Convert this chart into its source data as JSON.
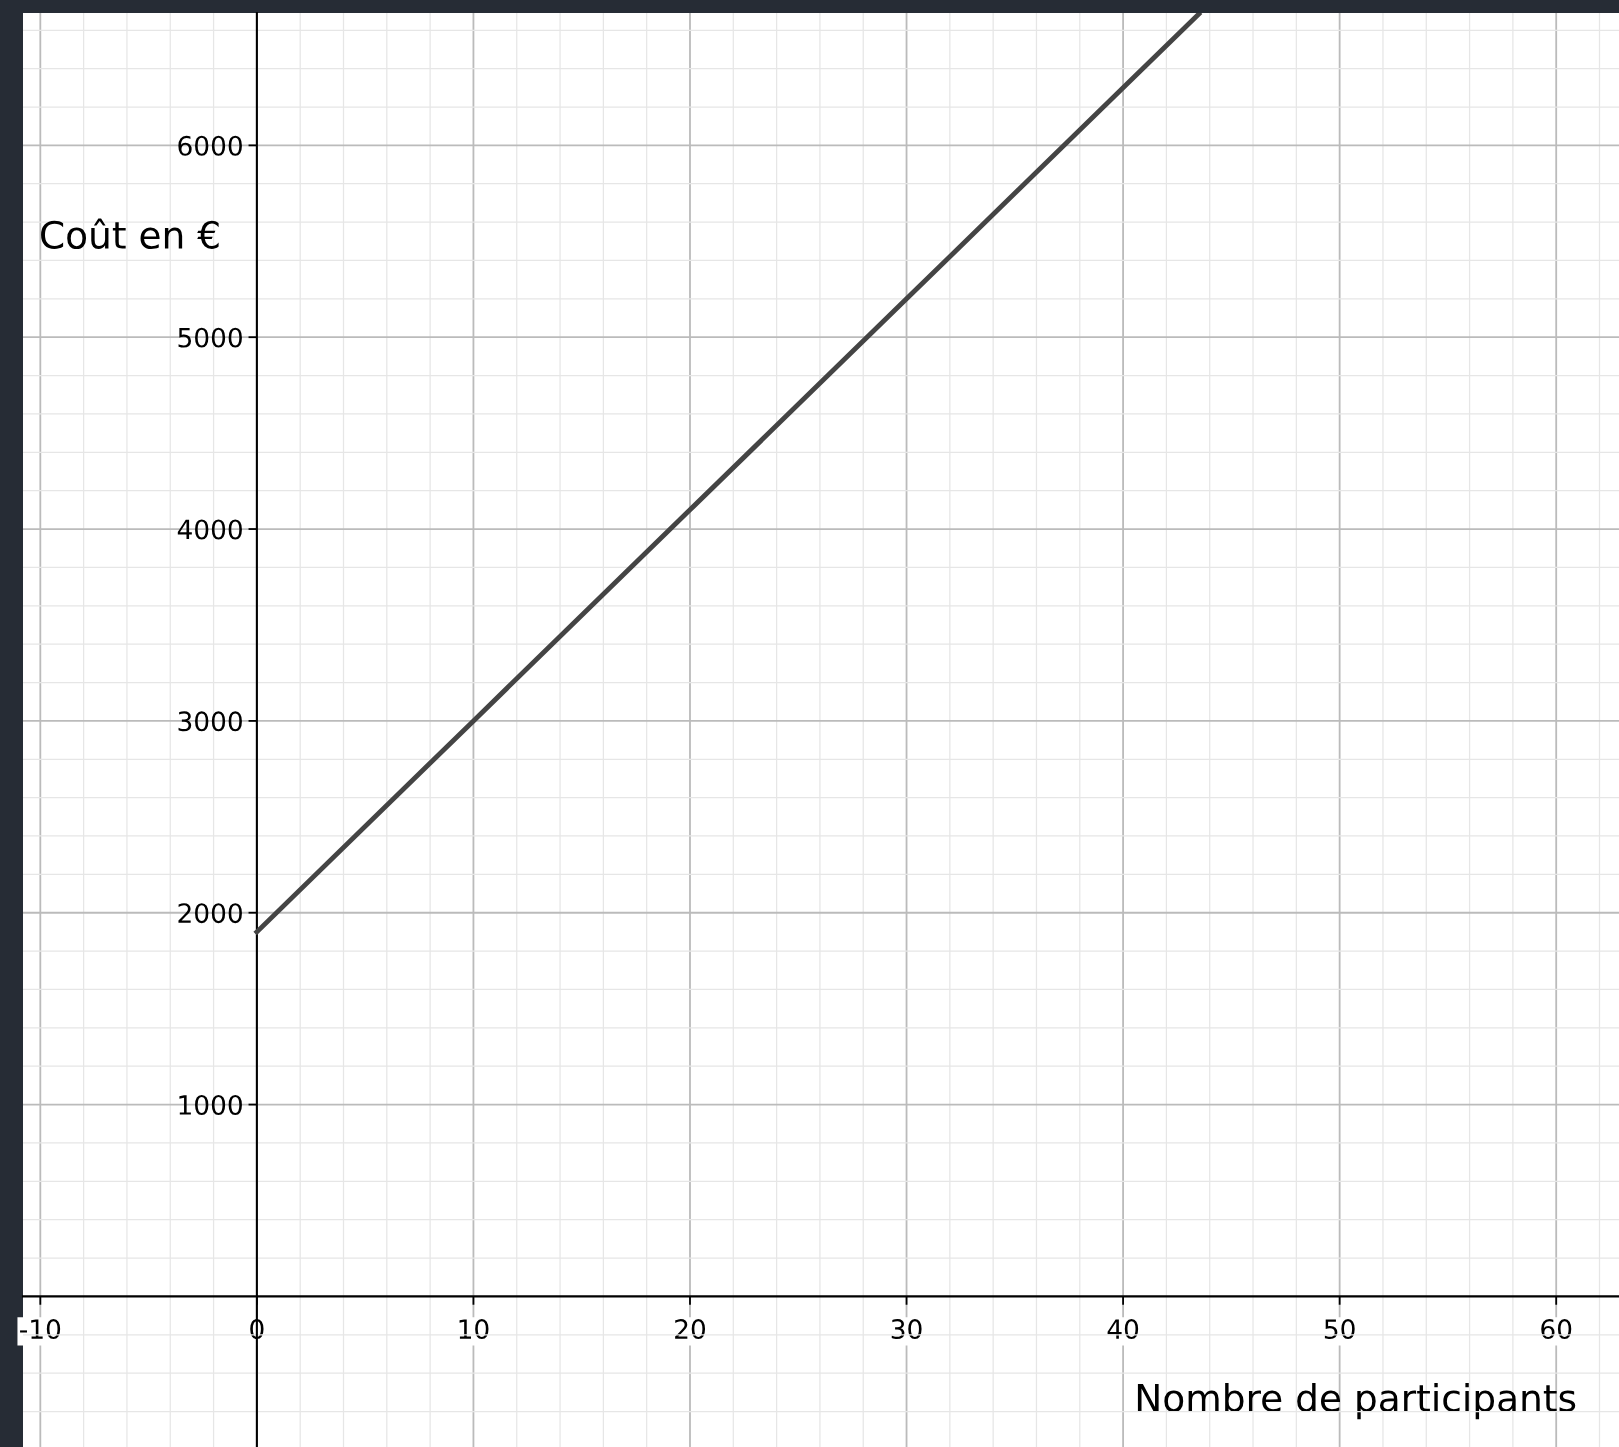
{
  "chart_data": {
    "type": "line",
    "xlabel": "Nombre de participants",
    "ylabel": "Coût en €",
    "x": [
      0,
      10,
      20,
      30,
      40,
      43.5
    ],
    "series": [
      {
        "color": "#444444",
        "values": [
          1900,
          3000,
          4100,
          5200,
          6300,
          6685
        ]
      }
    ],
    "xlim": [
      -10.8,
      62.9
    ],
    "ylim": [
      -785,
      6690
    ],
    "xticks": [
      -10,
      0,
      10,
      20,
      30,
      40,
      50,
      60
    ],
    "yticks": [
      1000,
      2000,
      3000,
      4000,
      5000,
      6000
    ],
    "grid": true,
    "marker": "none",
    "line_style": "solid"
  }
}
